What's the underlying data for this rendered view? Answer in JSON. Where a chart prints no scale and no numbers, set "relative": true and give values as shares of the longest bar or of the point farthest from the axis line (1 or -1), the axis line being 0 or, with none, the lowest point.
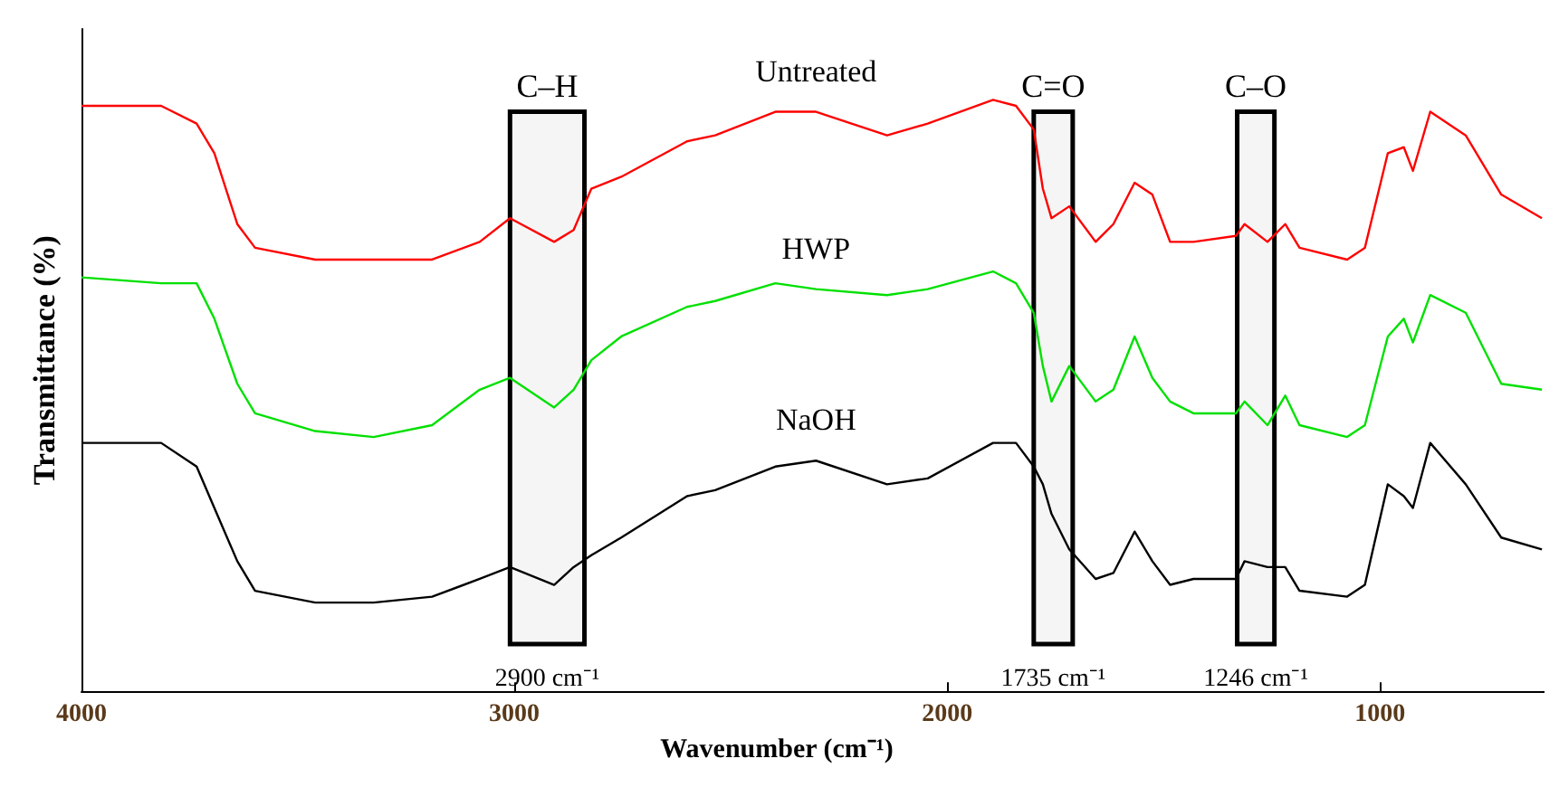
{
  "chart_data": {
    "type": "line",
    "relative": true,
    "ylabel": "Transmittance (%)",
    "xlabel": "Wavenumber (cm⁻¹)",
    "xlim": [
      4000,
      620
    ],
    "xticks": [
      4000,
      3000,
      2000,
      1000
    ],
    "grid": false,
    "legend": false,
    "marker": "none",
    "line_style": "solid",
    "x": [
      4000,
      3816,
      3734,
      3693,
      3640,
      3599,
      3460,
      3325,
      3190,
      3080,
      3010,
      2908,
      2863,
      2822,
      2753,
      2601,
      2536,
      2397,
      2303,
      2139,
      2045,
      1894,
      1841,
      1800,
      1779,
      1759,
      1718,
      1657,
      1616,
      1567,
      1526,
      1485,
      1431,
      1333,
      1313,
      1260,
      1219,
      1186,
      1076,
      1035,
      982,
      945,
      924,
      884,
      802,
      720,
      626
    ],
    "series": [
      {
        "name": "Untreated",
        "color": "#ff0000",
        "values": [
          0.99,
          0.99,
          0.96,
          0.91,
          0.79,
          0.75,
          0.73,
          0.73,
          0.73,
          0.76,
          0.8,
          0.76,
          0.78,
          0.85,
          0.87,
          0.93,
          0.94,
          0.98,
          0.98,
          0.94,
          0.96,
          1,
          0.99,
          0.95,
          0.85,
          0.8,
          0.82,
          0.76,
          0.79,
          0.86,
          0.84,
          0.76,
          0.76,
          0.77,
          0.79,
          0.76,
          0.79,
          0.75,
          0.73,
          0.75,
          0.91,
          0.92,
          0.88,
          0.98,
          0.94,
          0.84,
          0.8
        ]
      },
      {
        "name": "HWP",
        "color": "#00e000",
        "values": [
          0.7,
          0.69,
          0.69,
          0.63,
          0.52,
          0.47,
          0.44,
          0.43,
          0.45,
          0.51,
          0.53,
          0.48,
          0.51,
          0.56,
          0.6,
          0.65,
          0.66,
          0.69,
          0.68,
          0.67,
          0.68,
          0.71,
          0.69,
          0.64,
          0.55,
          0.49,
          0.55,
          0.49,
          0.51,
          0.6,
          0.53,
          0.49,
          0.47,
          0.47,
          0.49,
          0.45,
          0.5,
          0.45,
          0.43,
          0.45,
          0.6,
          0.63,
          0.59,
          0.67,
          0.64,
          0.52,
          0.51
        ]
      },
      {
        "name": "NaOH",
        "color": "#000000",
        "values": [
          0.42,
          0.42,
          0.38,
          0.31,
          0.22,
          0.17,
          0.15,
          0.15,
          0.16,
          0.19,
          0.21,
          0.18,
          0.21,
          0.23,
          0.26,
          0.33,
          0.34,
          0.38,
          0.39,
          0.35,
          0.36,
          0.42,
          0.42,
          0.38,
          0.35,
          0.3,
          0.24,
          0.19,
          0.2,
          0.27,
          0.22,
          0.18,
          0.19,
          0.19,
          0.22,
          0.21,
          0.21,
          0.17,
          0.16,
          0.18,
          0.35,
          0.33,
          0.31,
          0.42,
          0.35,
          0.26,
          0.24
        ]
      }
    ],
    "bands": [
      {
        "axis": "x",
        "from": 3010,
        "to": 2838,
        "label": "C–H",
        "color": "#000000"
      },
      {
        "axis": "x",
        "from": 1800,
        "to": 1710,
        "label": "C=O",
        "color": "#000000"
      },
      {
        "axis": "x",
        "from": 1330,
        "to": 1244,
        "label": "C–O",
        "color": "#000000"
      }
    ],
    "annotations": [
      "2900 cm⁻¹",
      "1735 cm⁻¹",
      "1246 cm⁻¹"
    ]
  }
}
